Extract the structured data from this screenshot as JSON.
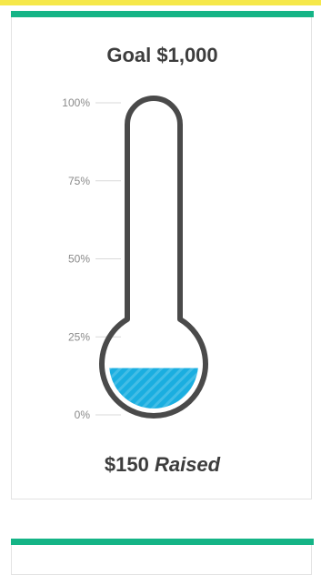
{
  "colors": {
    "top_strip": "#f6e84a",
    "accent": "#14b486",
    "fill": "#1aaee0",
    "outline": "#4a4a4a",
    "text": "#3d3d3d",
    "tick_text": "#8a8a8a"
  },
  "widget": {
    "goal_label": "Goal $1,000",
    "raised_amount": "$150",
    "raised_word": "Raised"
  },
  "chart_data": {
    "type": "thermometer",
    "goal": 1000,
    "raised": 150,
    "progress_fraction": 0.15,
    "ticks": [
      {
        "value": 100,
        "label": "100%"
      },
      {
        "value": 75,
        "label": "75%"
      },
      {
        "value": 50,
        "label": "50%"
      },
      {
        "value": 25,
        "label": "25%"
      },
      {
        "value": 0,
        "label": "0%"
      }
    ]
  }
}
